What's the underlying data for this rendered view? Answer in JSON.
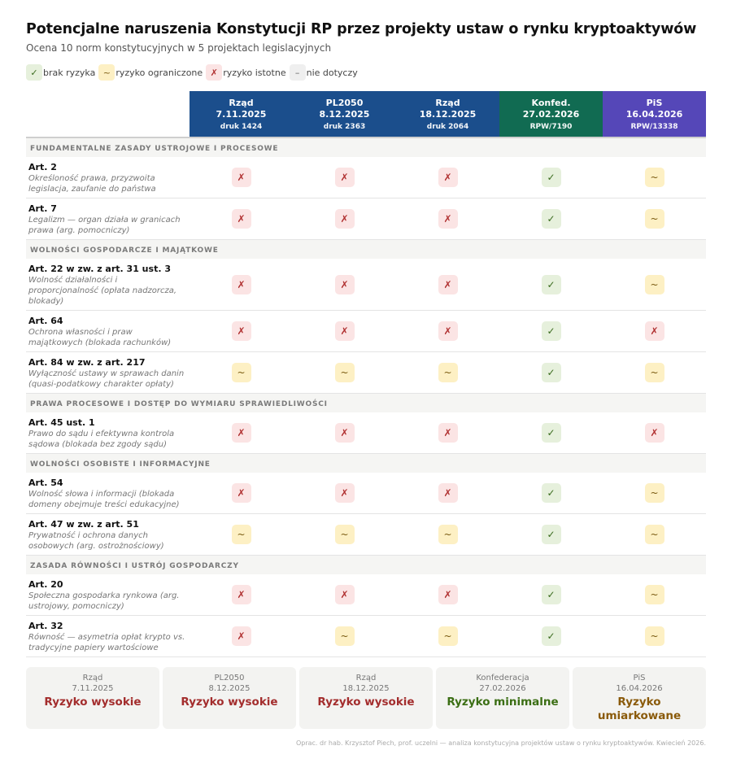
{
  "title": "Potencjalne naruszenia Konstytucji RP przez projekty ustaw o rynku kryptoaktywów",
  "subtitle": "Ocena 10 norm konstytucyjnych w 5 projektach legislacyjnych",
  "legend": [
    {
      "symbol": "✓",
      "label": "brak ryzyka",
      "kind": "ok"
    },
    {
      "symbol": "~",
      "label": "ryzyko ograniczone",
      "kind": "lim"
    },
    {
      "symbol": "✗",
      "label": "ryzyko istotne",
      "kind": "risk"
    },
    {
      "symbol": "–",
      "label": "nie dotyczy",
      "kind": "na"
    }
  ],
  "colors": {
    "col0": "#1b4e8c",
    "col1": "#1b4e8c",
    "col2": "#1b4e8c",
    "col3": "#116b52",
    "col4": "#5547b8",
    "high": "#a32d2d",
    "minimal": "#3b6e14",
    "moderate": "#8a5a0a"
  },
  "columns": [
    {
      "name": "Rząd",
      "date": "7.11.2025",
      "code": "druk 1424"
    },
    {
      "name": "PL2050",
      "date": "8.12.2025",
      "code": "druk 2363"
    },
    {
      "name": "Rząd",
      "date": "18.12.2025",
      "code": "druk 2064"
    },
    {
      "name": "Konfed.",
      "date": "27.02.2026",
      "code": "RPW/7190"
    },
    {
      "name": "PiS",
      "date": "16.04.2026",
      "code": "RPW/13338"
    }
  ],
  "sections": [
    {
      "title": "FUNDAMENTALNE ZASADY USTROJOWE I PROCESOWE",
      "rows": [
        {
          "art": "Art. 2",
          "desc": [
            "Określoność prawa, przyzwoita",
            "legislacja, zaufanie do państwa"
          ],
          "marks": [
            "✗",
            "✗",
            "✗",
            "✓",
            "~"
          ]
        },
        {
          "art": "Art. 7",
          "desc": [
            "Legalizm — organ działa w granicach",
            "prawa (arg. pomocniczy)"
          ],
          "marks": [
            "✗",
            "✗",
            "✗",
            "✓",
            "~"
          ]
        }
      ]
    },
    {
      "title": "WOLNOŚCI GOSPODARCZE I MAJĄTKOWE",
      "rows": [
        {
          "art": "Art. 22 w zw. z art. 31 ust. 3",
          "desc": [
            "Wolność działalności i",
            "proporcjonalność (opłata nadzorcza,",
            "blokady)"
          ],
          "marks": [
            "✗",
            "✗",
            "✗",
            "✓",
            "~"
          ]
        },
        {
          "art": "Art. 64",
          "desc": [
            "Ochrona własności i praw",
            "majątkowych (blokada rachunków)"
          ],
          "marks": [
            "✗",
            "✗",
            "✗",
            "✓",
            "✗"
          ]
        },
        {
          "art": "Art. 84 w zw. z art. 217",
          "desc": [
            "Wyłączność ustawy w sprawach danin",
            "(quasi-podatkowy charakter opłaty)"
          ],
          "marks": [
            "~",
            "~",
            "~",
            "✓",
            "~"
          ]
        }
      ]
    },
    {
      "title": "PRAWA PROCESOWE I DOSTĘP DO WYMIARU SPRAWIEDLIWOŚCI",
      "rows": [
        {
          "art": "Art. 45 ust. 1",
          "desc": [
            "Prawo do sądu i efektywna kontrola",
            "sądowa (blokada bez zgody sądu)"
          ],
          "marks": [
            "✗",
            "✗",
            "✗",
            "✓",
            "✗"
          ]
        }
      ]
    },
    {
      "title": "WOLNOŚCI OSOBISTE I INFORMACYJNE",
      "rows": [
        {
          "art": "Art. 54",
          "desc": [
            "Wolność słowa i informacji (blokada",
            "domeny obejmuje treści edukacyjne)"
          ],
          "marks": [
            "✗",
            "✗",
            "✗",
            "✓",
            "~"
          ]
        },
        {
          "art": "Art. 47 w zw. z art. 51",
          "desc": [
            "Prywatność i ochrona danych",
            "osobowych (arg. ostrożnościowy)"
          ],
          "marks": [
            "~",
            "~",
            "~",
            "✓",
            "~"
          ]
        }
      ]
    },
    {
      "title": "ZASADA RÓWNOŚCI I USTRÓJ GOSPODARCZY",
      "rows": [
        {
          "art": "Art. 20",
          "desc": [
            "Społeczna gospodarka rynkowa (arg.",
            "ustrojowy, pomocniczy)"
          ],
          "marks": [
            "✗",
            "✗",
            "✗",
            "✓",
            "~"
          ]
        },
        {
          "art": "Art. 32",
          "desc": [
            "Równość — asymetria opłat krypto vs.",
            "tradycyjne papiery wartościowe"
          ],
          "marks": [
            "✗",
            "~",
            "~",
            "✓",
            "~"
          ]
        }
      ]
    }
  ],
  "summary": [
    {
      "name": "Rząd",
      "date": "7.11.2025",
      "verdict": [
        "Ryzyko wysokie"
      ],
      "level": "high"
    },
    {
      "name": "PL2050",
      "date": "8.12.2025",
      "verdict": [
        "Ryzyko wysokie"
      ],
      "level": "high"
    },
    {
      "name": "Rząd",
      "date": "18.12.2025",
      "verdict": [
        "Ryzyko wysokie"
      ],
      "level": "high"
    },
    {
      "name": "Konfederacja",
      "date": "27.02.2026",
      "verdict": [
        "Ryzyko minimalne"
      ],
      "level": "minimal"
    },
    {
      "name": "PiS",
      "date": "16.04.2026",
      "verdict": [
        "Ryzyko",
        "umiarkowane"
      ],
      "level": "moderate"
    }
  ],
  "footer": "Oprac. dr hab. Krzysztof Piech, prof. uczelni — analiza konstytucyjna projektów ustaw o rynku kryptoaktywów. Kwiecień 2026."
}
